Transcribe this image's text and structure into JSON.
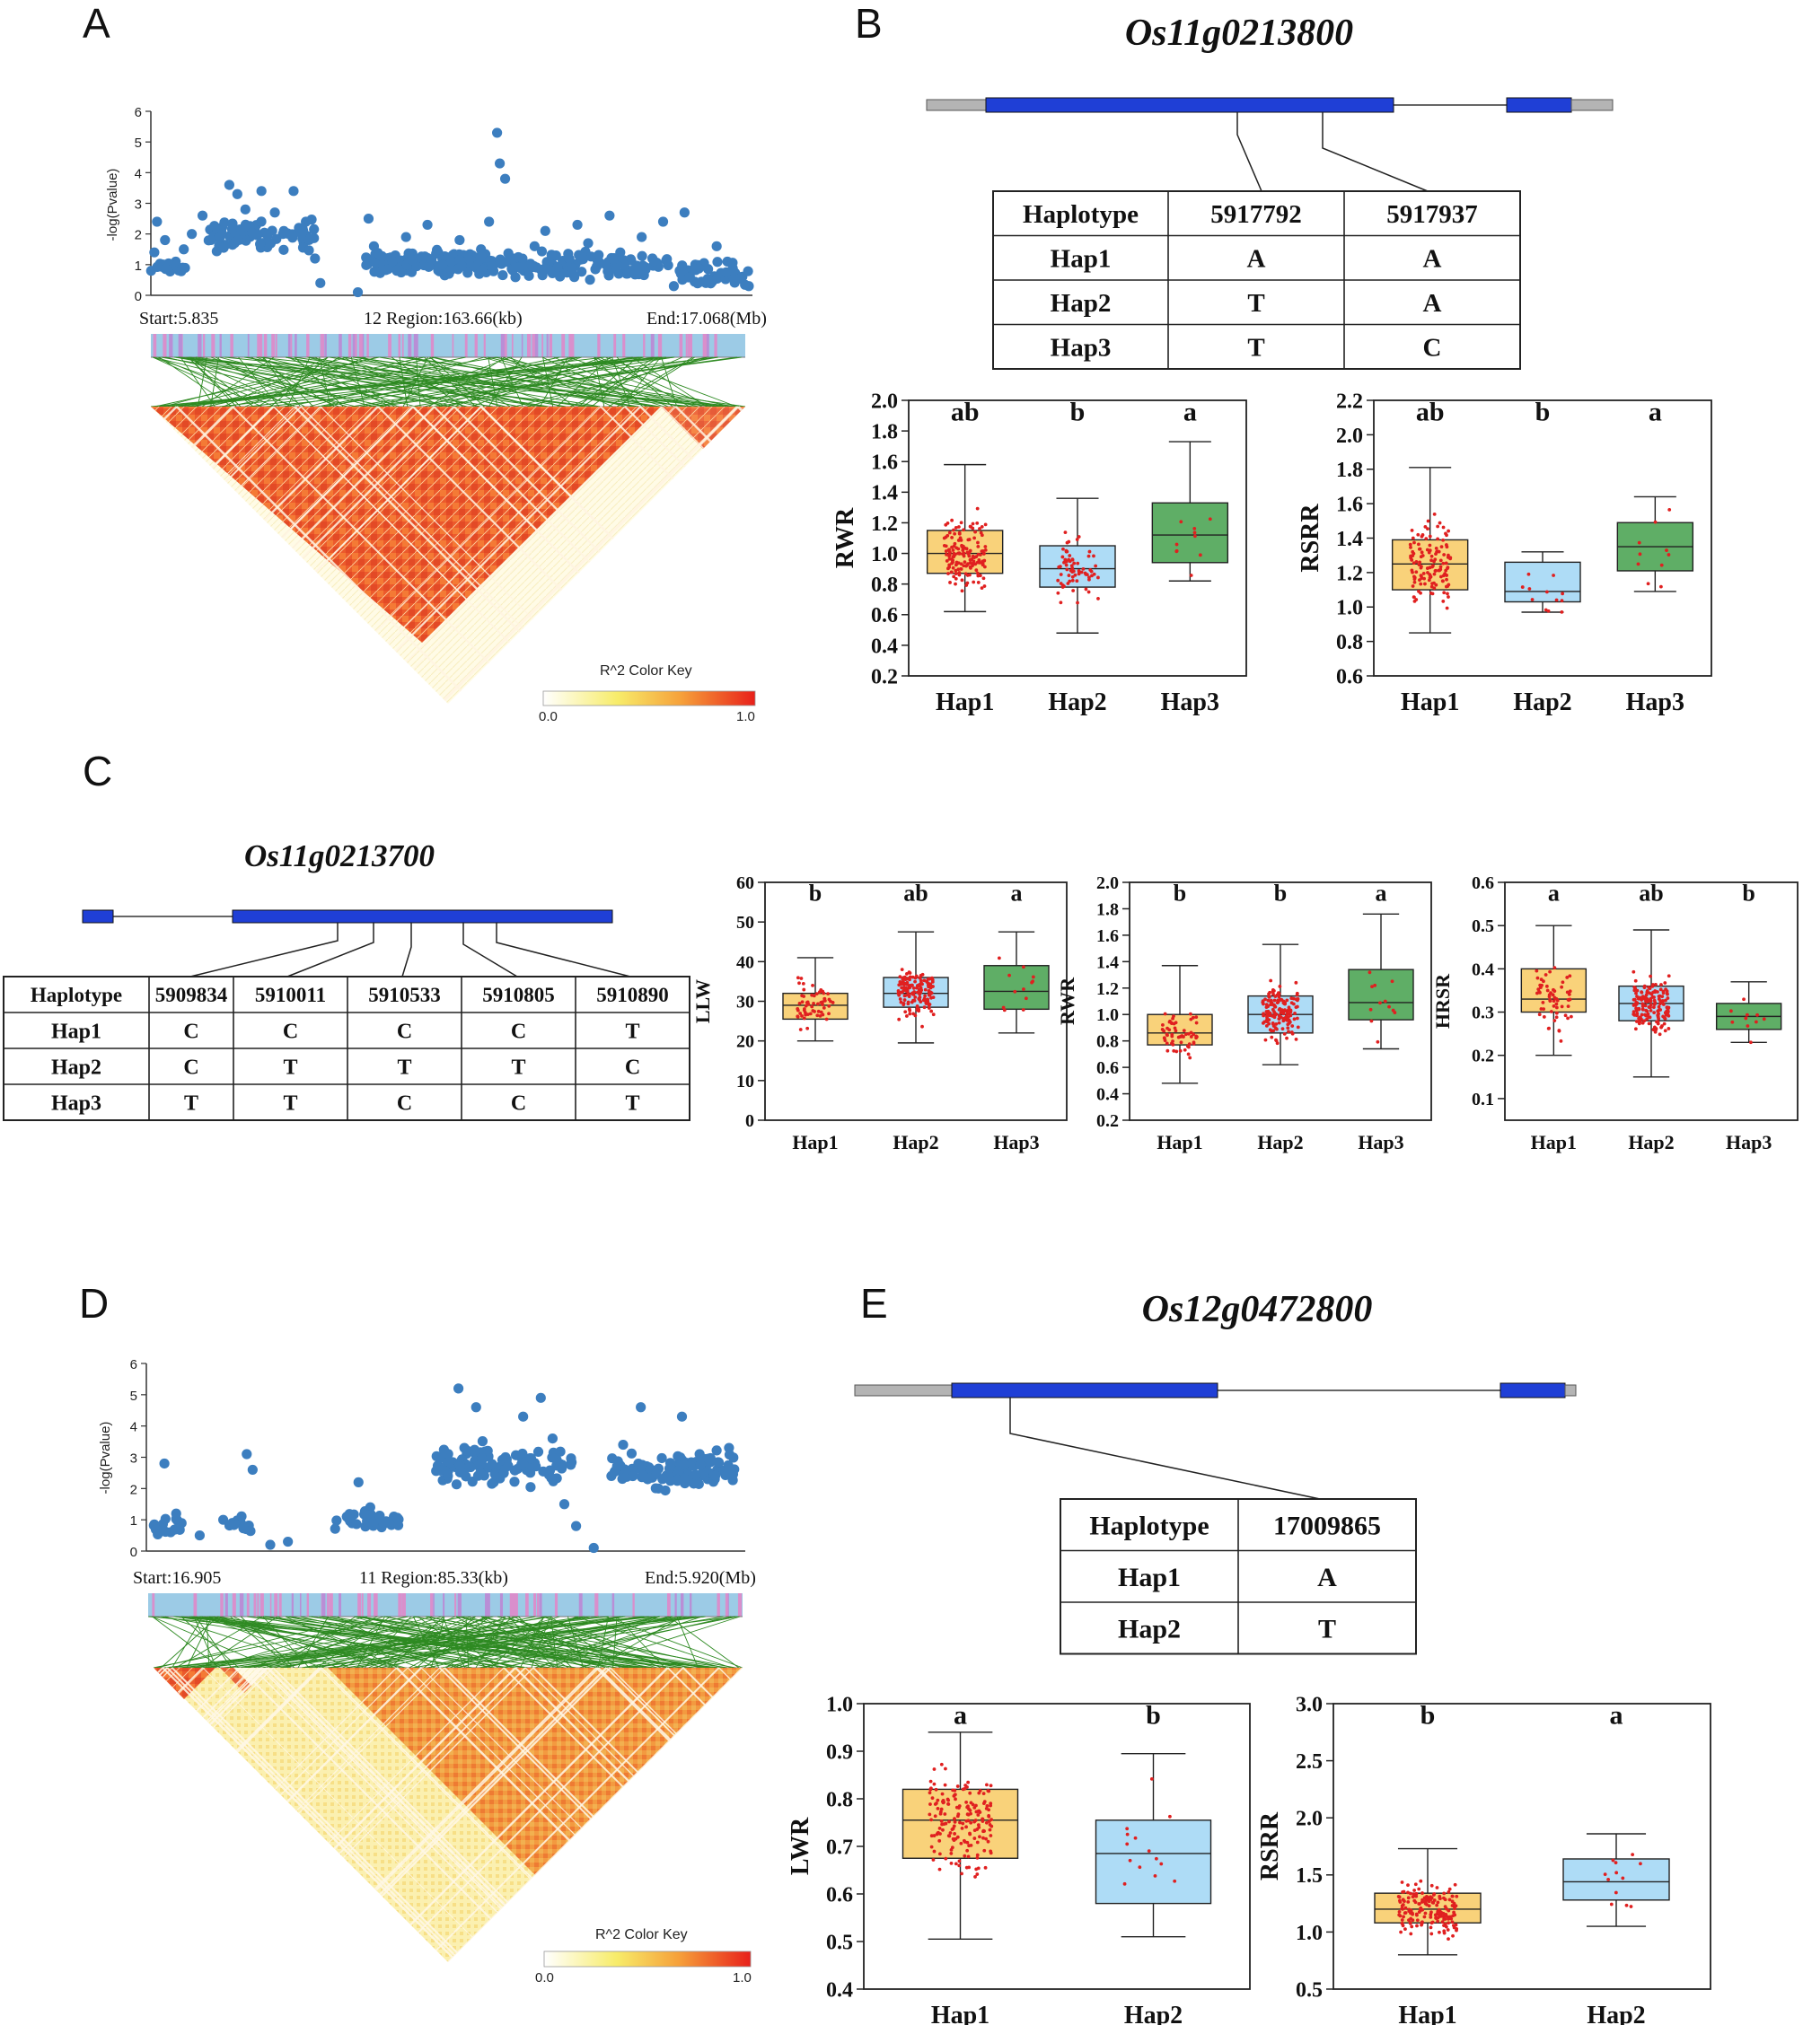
{
  "panels": {
    "A": {
      "letter": "A",
      "ylabel": "-log(Pvalue)",
      "yticks": [
        "0",
        "1",
        "2",
        "3",
        "4",
        "5",
        "6"
      ],
      "start_label": "Start:5.835",
      "region_label": "12 Region:163.66(kb)",
      "end_label": "End:17.068(Mb)",
      "color_key_title": "R^2 Color Key",
      "color_key_min": "0.0",
      "color_key_max": "1.0"
    },
    "B": {
      "letter": "B",
      "gene": "Os11g0213800",
      "table": {
        "header": [
          "Haplotype",
          "5917792",
          "5917937"
        ],
        "rows": [
          [
            "Hap1",
            "A",
            "A"
          ],
          [
            "Hap2",
            "T",
            "A"
          ],
          [
            "Hap3",
            "T",
            "C"
          ]
        ]
      }
    },
    "C": {
      "letter": "C",
      "gene": "Os11g0213700",
      "table": {
        "header": [
          "Haplotype",
          "5909834",
          "5910011",
          "5910533",
          "5910805",
          "5910890"
        ],
        "rows": [
          [
            "Hap1",
            "C",
            "C",
            "C",
            "C",
            "T"
          ],
          [
            "Hap2",
            "C",
            "T",
            "T",
            "T",
            "C"
          ],
          [
            "Hap3",
            "T",
            "T",
            "C",
            "C",
            "T"
          ]
        ]
      }
    },
    "D": {
      "letter": "D",
      "ylabel": "-log(Pvalue)",
      "yticks": [
        "0",
        "1",
        "2",
        "3",
        "4",
        "5",
        "6"
      ],
      "start_label": "Start:16.905",
      "region_label": "11 Region:85.33(kb)",
      "end_label": "End:5.920(Mb)",
      "color_key_title": "R^2 Color Key",
      "color_key_min": "0.0",
      "color_key_max": "1.0"
    },
    "E": {
      "letter": "E",
      "gene": "Os12g0472800",
      "table": {
        "header": [
          "Haplotype",
          "17009865"
        ],
        "rows": [
          [
            "Hap1",
            "A"
          ],
          [
            "Hap2",
            "T"
          ]
        ]
      }
    }
  },
  "colors": {
    "scatter": "#3c7ebf",
    "exon": "#1f3fd6",
    "utr": "#b4b4b4",
    "hap1": "#f9d27a",
    "hap2": "#aedcf6",
    "hap3": "#5fae66",
    "jitter": "#e02020",
    "ld_green": "#2e8a22"
  },
  "chart_data": [
    {
      "id": "A-manhattan",
      "type": "scatter",
      "ylabel": "-log(Pvalue)",
      "ylim": [
        0,
        6
      ],
      "x_range_mb": [
        5.835,
        17.068
      ],
      "points": [
        [
          5.84,
          0.8
        ],
        [
          5.9,
          1.4
        ],
        [
          5.95,
          2.4
        ],
        [
          6.1,
          1.8
        ],
        [
          6.3,
          1.1
        ],
        [
          6.45,
          1.5
        ],
        [
          6.6,
          2.0
        ],
        [
          6.8,
          2.6
        ],
        [
          7.0,
          1.9
        ],
        [
          7.15,
          2.1
        ],
        [
          7.3,
          3.6
        ],
        [
          7.45,
          3.3
        ],
        [
          7.6,
          2.8
        ],
        [
          7.75,
          2.2
        ],
        [
          7.9,
          3.4
        ],
        [
          8.0,
          1.6
        ],
        [
          8.15,
          2.7
        ],
        [
          8.3,
          2.0
        ],
        [
          8.5,
          3.4
        ],
        [
          8.6,
          2.2
        ],
        [
          8.75,
          1.8
        ],
        [
          8.9,
          1.2
        ],
        [
          9.0,
          0.4
        ],
        [
          9.7,
          0.1
        ],
        [
          9.9,
          2.5
        ],
        [
          10.0,
          1.6
        ],
        [
          10.2,
          0.9
        ],
        [
          10.4,
          1.3
        ],
        [
          10.6,
          1.9
        ],
        [
          10.8,
          1.1
        ],
        [
          11.0,
          2.3
        ],
        [
          11.2,
          1.4
        ],
        [
          11.4,
          0.7
        ],
        [
          11.6,
          1.8
        ],
        [
          11.8,
          1.0
        ],
        [
          12.0,
          1.5
        ],
        [
          12.15,
          2.4
        ],
        [
          12.3,
          5.3
        ],
        [
          12.35,
          4.3
        ],
        [
          12.45,
          3.8
        ],
        [
          12.6,
          1.2
        ],
        [
          12.8,
          0.8
        ],
        [
          13.0,
          1.6
        ],
        [
          13.2,
          2.1
        ],
        [
          13.4,
          1.3
        ],
        [
          13.6,
          0.9
        ],
        [
          13.8,
          2.3
        ],
        [
          14.0,
          1.7
        ],
        [
          14.2,
          1.1
        ],
        [
          14.4,
          2.6
        ],
        [
          14.6,
          1.4
        ],
        [
          14.8,
          0.8
        ],
        [
          15.0,
          1.9
        ],
        [
          15.2,
          1.2
        ],
        [
          15.4,
          2.4
        ],
        [
          15.6,
          0.3
        ],
        [
          15.8,
          2.7
        ],
        [
          16.0,
          1.0
        ],
        [
          16.2,
          0.4
        ],
        [
          16.4,
          1.6
        ],
        [
          16.6,
          1.1
        ],
        [
          16.8,
          0.6
        ],
        [
          17.0,
          0.3
        ]
      ]
    },
    {
      "id": "B-RWR",
      "type": "box",
      "ylabel": "RWR",
      "ylim": [
        0.2,
        2.0
      ],
      "yticks": [
        0.2,
        0.4,
        0.6,
        0.8,
        1.0,
        1.2,
        1.4,
        1.6,
        1.8,
        2.0
      ],
      "categories": [
        "Hap1",
        "Hap2",
        "Hap3"
      ],
      "letters": [
        "ab",
        "b",
        "a"
      ],
      "boxes": [
        {
          "min": 0.62,
          "q1": 0.87,
          "median": 1.0,
          "q3": 1.15,
          "max": 1.58
        },
        {
          "min": 0.48,
          "q1": 0.78,
          "median": 0.9,
          "q3": 1.05,
          "max": 1.36
        },
        {
          "min": 0.82,
          "q1": 0.94,
          "median": 1.12,
          "q3": 1.33,
          "max": 1.73
        }
      ],
      "n": [
        160,
        70,
        10
      ]
    },
    {
      "id": "B-RSRR",
      "type": "box",
      "ylabel": "RSRR",
      "ylim": [
        0.6,
        2.2
      ],
      "yticks": [
        0.6,
        0.8,
        1.0,
        1.2,
        1.4,
        1.6,
        1.8,
        2.0,
        2.2
      ],
      "categories": [
        "Hap1",
        "Hap2",
        "Hap3"
      ],
      "letters": [
        "ab",
        "b",
        "a"
      ],
      "boxes": [
        {
          "min": 0.85,
          "q1": 1.1,
          "median": 1.25,
          "q3": 1.39,
          "max": 1.81
        },
        {
          "min": 0.97,
          "q1": 1.03,
          "median": 1.09,
          "q3": 1.26,
          "max": 1.32
        },
        {
          "min": 1.09,
          "q1": 1.21,
          "median": 1.35,
          "q3": 1.49,
          "max": 1.64
        }
      ],
      "n": [
        130,
        12,
        10
      ]
    },
    {
      "id": "C-LLW",
      "type": "box",
      "ylabel": "LLW",
      "ylim": [
        0,
        60
      ],
      "yticks": [
        0,
        10,
        20,
        30,
        40,
        50,
        60
      ],
      "categories": [
        "Hap1",
        "Hap2",
        "Hap3"
      ],
      "letters": [
        "b",
        "ab",
        "a"
      ],
      "boxes": [
        {
          "min": 20,
          "q1": 25.5,
          "median": 29,
          "q3": 32,
          "max": 41
        },
        {
          "min": 19.5,
          "q1": 28.5,
          "median": 32,
          "q3": 36,
          "max": 47.5
        },
        {
          "min": 22,
          "q1": 28,
          "median": 32.5,
          "q3": 39,
          "max": 47.5
        }
      ],
      "n": [
        60,
        150,
        12
      ]
    },
    {
      "id": "C-RWR",
      "type": "box",
      "ylabel": "RWR",
      "ylim": [
        0.2,
        2.0
      ],
      "yticks": [
        0.2,
        0.4,
        0.6,
        0.8,
        1.0,
        1.2,
        1.4,
        1.6,
        1.8,
        2.0
      ],
      "categories": [
        "Hap1",
        "Hap2",
        "Hap3"
      ],
      "letters": [
        "b",
        "b",
        "a"
      ],
      "boxes": [
        {
          "min": 0.48,
          "q1": 0.77,
          "median": 0.86,
          "q3": 1.0,
          "max": 1.37
        },
        {
          "min": 0.62,
          "q1": 0.86,
          "median": 1.0,
          "q3": 1.14,
          "max": 1.53
        },
        {
          "min": 0.74,
          "q1": 0.96,
          "median": 1.09,
          "q3": 1.34,
          "max": 1.76
        }
      ],
      "n": [
        60,
        150,
        12
      ]
    },
    {
      "id": "C-HRSR",
      "type": "box",
      "ylabel": "HRSR",
      "ylim": [
        0.05,
        0.6
      ],
      "yticks": [
        0.1,
        0.2,
        0.3,
        0.4,
        0.5,
        0.6
      ],
      "categories": [
        "Hap1",
        "Hap2",
        "Hap3"
      ],
      "letters": [
        "a",
        "ab",
        "b"
      ],
      "boxes": [
        {
          "min": 0.2,
          "q1": 0.3,
          "median": 0.33,
          "q3": 0.4,
          "max": 0.5
        },
        {
          "min": 0.15,
          "q1": 0.28,
          "median": 0.32,
          "q3": 0.36,
          "max": 0.49
        },
        {
          "min": 0.23,
          "q1": 0.26,
          "median": 0.29,
          "q3": 0.32,
          "max": 0.37
        }
      ],
      "n": [
        60,
        170,
        10
      ]
    },
    {
      "id": "D-manhattan",
      "type": "scatter",
      "ylabel": "-log(Pvalue)",
      "ylim": [
        0,
        6
      ],
      "x_range_mb": [
        16.905,
        5.92
      ],
      "points": [
        [
          0.01,
          0.7
        ],
        [
          0.02,
          2.8
        ],
        [
          0.04,
          1.2
        ],
        [
          0.08,
          0.5
        ],
        [
          0.12,
          1.0
        ],
        [
          0.15,
          0.9
        ],
        [
          0.16,
          3.1
        ],
        [
          0.17,
          2.6
        ],
        [
          0.2,
          0.2
        ],
        [
          0.23,
          0.3
        ],
        [
          0.33,
          1.1
        ],
        [
          0.35,
          2.2
        ],
        [
          0.37,
          1.4
        ],
        [
          0.4,
          0.9
        ],
        [
          0.5,
          2.9
        ],
        [
          0.52,
          5.2
        ],
        [
          0.53,
          3.3
        ],
        [
          0.55,
          4.6
        ],
        [
          0.58,
          2.2
        ],
        [
          0.6,
          3.0
        ],
        [
          0.63,
          4.3
        ],
        [
          0.66,
          4.9
        ],
        [
          0.68,
          3.6
        ],
        [
          0.7,
          1.5
        ],
        [
          0.72,
          0.8
        ],
        [
          0.75,
          0.1
        ],
        [
          0.78,
          2.4
        ],
        [
          0.8,
          3.4
        ],
        [
          0.83,
          4.6
        ],
        [
          0.86,
          2.0
        ],
        [
          0.9,
          4.3
        ],
        [
          0.93,
          3.1
        ],
        [
          0.96,
          2.6
        ],
        [
          0.98,
          3.3
        ]
      ]
    },
    {
      "id": "E-LWR",
      "type": "box",
      "ylabel": "LWR",
      "ylim": [
        0.4,
        1.0
      ],
      "yticks": [
        0.4,
        0.5,
        0.6,
        0.7,
        0.8,
        0.9,
        1.0
      ],
      "categories": [
        "Hap1",
        "Hap2"
      ],
      "letters": [
        "a",
        "b"
      ],
      "boxes": [
        {
          "min": 0.505,
          "q1": 0.675,
          "median": 0.755,
          "q3": 0.82,
          "max": 0.94
        },
        {
          "min": 0.51,
          "q1": 0.58,
          "median": 0.685,
          "q3": 0.755,
          "max": 0.895
        }
      ],
      "n": [
        180,
        14
      ]
    },
    {
      "id": "E-RSRR",
      "type": "box",
      "ylabel": "RSRR",
      "ylim": [
        0.5,
        3.0
      ],
      "yticks": [
        0.5,
        1.0,
        1.5,
        2.0,
        2.5,
        3.0
      ],
      "categories": [
        "Hap1",
        "Hap2"
      ],
      "letters": [
        "b",
        "a"
      ],
      "boxes": [
        {
          "min": 0.8,
          "q1": 1.08,
          "median": 1.2,
          "q3": 1.34,
          "max": 1.73
        },
        {
          "min": 1.05,
          "q1": 1.28,
          "median": 1.44,
          "q3": 1.64,
          "max": 1.86
        }
      ],
      "n": [
        180,
        12
      ]
    }
  ]
}
